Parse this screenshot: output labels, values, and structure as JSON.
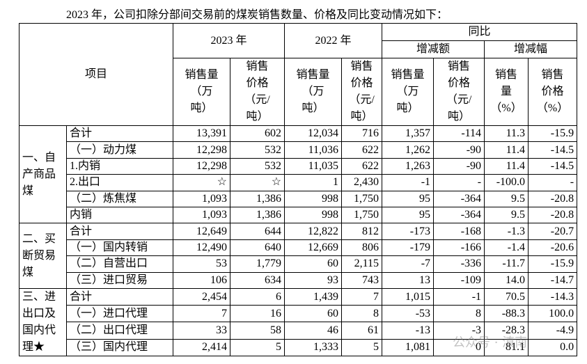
{
  "intro": "2023 年，公司扣除分部间交易前的煤炭销售数量、价格及同比变动情况如下：",
  "table": {
    "header": {
      "item": "项目",
      "year2023": "2023 年",
      "year2022": "2022 年",
      "yoy": "同比",
      "change_amount": "增减额",
      "change_rate": "增减幅",
      "columns": [
        [
          "销售量",
          "（万",
          "吨）"
        ],
        [
          "销售",
          "价格",
          "（元/",
          "吨）"
        ],
        [
          "销售量",
          "（万",
          "吨）"
        ],
        [
          "销售",
          "价格",
          "（元/",
          "吨）"
        ],
        [
          "销售量",
          "（万",
          "吨）"
        ],
        [
          "销售",
          "价格",
          "（元/",
          "吨）"
        ],
        [
          "销售",
          "量",
          "（%）"
        ],
        [
          "销售",
          "价格",
          "（%）"
        ]
      ]
    },
    "groups": [
      {
        "label": "一、自产商品煤",
        "rows": [
          [
            "合计",
            "13,391",
            "602",
            "12,034",
            "716",
            "1,357",
            "-114",
            "11.3",
            "-15.9"
          ],
          [
            "（一）动力煤",
            "12,298",
            "532",
            "11,036",
            "622",
            "1,262",
            "-90",
            "11.4",
            "-14.5"
          ],
          [
            "1.内销",
            "12,298",
            "532",
            "11,035",
            "622",
            "1,263",
            "-90",
            "11.4",
            "-14.5"
          ],
          [
            "2.出口",
            "☆",
            "☆",
            "1",
            "2,430",
            "-1",
            "-",
            "-100.0",
            "-"
          ],
          [
            "（二）炼焦煤",
            "1,093",
            "1,386",
            "998",
            "1,750",
            "95",
            "-364",
            "9.5",
            "-20.8"
          ],
          [
            "内销",
            "1,093",
            "1,386",
            "998",
            "1,750",
            "95",
            "-364",
            "9.5",
            "-20.8"
          ]
        ]
      },
      {
        "label": "二、买断贸易煤",
        "rows": [
          [
            "合计",
            "12,649",
            "644",
            "12,822",
            "812",
            "-173",
            "-168",
            "-1.3",
            "-20.7"
          ],
          [
            "（一）国内转销",
            "12,490",
            "640",
            "12,669",
            "806",
            "-179",
            "-166",
            "-1.4",
            "-20.6"
          ],
          [
            "（二）自营出口",
            "53",
            "1,779",
            "60",
            "2,115",
            "-7",
            "-336",
            "-11.7",
            "-15.9"
          ],
          [
            "（三）进口贸易",
            "106",
            "634",
            "93",
            "743",
            "13",
            "-109",
            "14.0",
            "-14.7"
          ]
        ]
      },
      {
        "label": "三、进出口及国内代理★",
        "rows": [
          [
            "合计",
            "2,454",
            "6",
            "1,439",
            "7",
            "1,015",
            "-1",
            "70.5",
            "-14.3"
          ],
          [
            "（一）进口代理",
            "7",
            "16",
            "60",
            "8",
            "-53",
            "8",
            "-88.3",
            "100.0"
          ],
          [
            "（二）出口代理",
            "33",
            "58",
            "46",
            "61",
            "-13",
            "-3",
            "-28.3",
            "-4.9"
          ],
          [
            "（三）国内代理",
            "2,414",
            "5",
            "1,333",
            "5",
            "1,081",
            "0",
            "81.1",
            "0.0"
          ]
        ]
      }
    ]
  },
  "watermark": "公众号 · 滇南"
}
